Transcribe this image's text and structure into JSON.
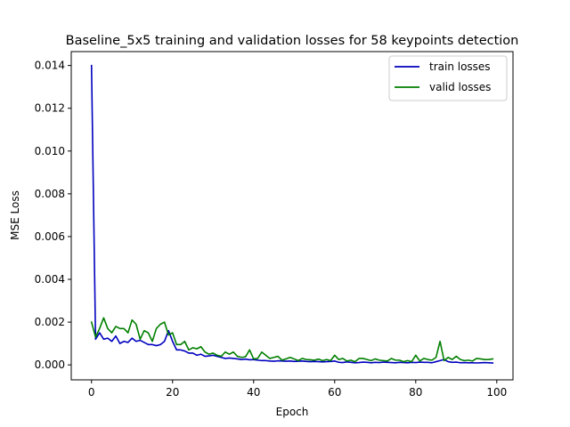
{
  "chart_data": {
    "type": "line",
    "title": "Baseline_5x5 training and validation losses for 58 keypoints detection",
    "xlabel": "Epoch",
    "ylabel": "MSE Loss",
    "xlim": [
      -5,
      104
    ],
    "ylim": [
      -0.0007,
      0.01465
    ],
    "xticks": [
      0,
      20,
      40,
      60,
      80,
      100
    ],
    "xtick_labels": [
      "0",
      "20",
      "40",
      "60",
      "80",
      "100"
    ],
    "yticks": [
      0,
      0.002,
      0.004,
      0.006,
      0.008,
      0.01,
      0.012,
      0.014
    ],
    "ytick_labels": [
      "0.000",
      "0.002",
      "0.004",
      "0.006",
      "0.008",
      "0.010",
      "0.012",
      "0.014"
    ],
    "grid": false,
    "legend_position": "top-right",
    "x": [
      0,
      1,
      2,
      3,
      4,
      5,
      6,
      7,
      8,
      9,
      10,
      11,
      12,
      13,
      14,
      15,
      16,
      17,
      18,
      19,
      20,
      21,
      22,
      23,
      24,
      25,
      26,
      27,
      28,
      29,
      30,
      31,
      32,
      33,
      34,
      35,
      36,
      37,
      38,
      39,
      40,
      41,
      42,
      43,
      44,
      45,
      46,
      47,
      48,
      49,
      50,
      51,
      52,
      53,
      54,
      55,
      56,
      57,
      58,
      59,
      60,
      61,
      62,
      63,
      64,
      65,
      66,
      67,
      68,
      69,
      70,
      71,
      72,
      73,
      74,
      75,
      76,
      77,
      78,
      79,
      80,
      81,
      82,
      83,
      84,
      85,
      86,
      87,
      88,
      89,
      90,
      91,
      92,
      93,
      94,
      95,
      96,
      97,
      98,
      99
    ],
    "series": [
      {
        "name": "train losses",
        "color": "#0000bf",
        "values": [
          0.014,
          0.0012,
          0.0015,
          0.0012,
          0.00125,
          0.0011,
          0.00135,
          0.001,
          0.0011,
          0.00105,
          0.00125,
          0.0011,
          0.00115,
          0.00105,
          0.00095,
          0.00095,
          0.0009,
          0.00095,
          0.0011,
          0.0016,
          0.0011,
          0.0007,
          0.0007,
          0.00065,
          0.00055,
          0.00055,
          0.00045,
          0.0005,
          0.0004,
          0.00042,
          0.00045,
          0.0004,
          0.00035,
          0.0003,
          0.00032,
          0.0003,
          0.00028,
          0.00025,
          0.00027,
          0.00024,
          0.00025,
          0.00022,
          0.0002,
          0.0002,
          0.00018,
          0.00017,
          0.00019,
          0.00018,
          0.00017,
          0.00018,
          0.00016,
          0.00017,
          0.00018,
          0.00016,
          0.00015,
          0.00016,
          0.00015,
          0.00014,
          0.00015,
          0.00016,
          0.00018,
          0.00012,
          0.00011,
          0.00014,
          0.00012,
          0.0001,
          0.00011,
          0.00013,
          0.00012,
          0.0001,
          0.00012,
          0.00011,
          0.00013,
          0.00012,
          0.00011,
          0.0001,
          0.00012,
          0.00011,
          0.0001,
          0.00012,
          0.00011,
          0.00013,
          0.00012,
          0.00012,
          0.0001,
          0.00015,
          0.0002,
          0.00025,
          0.00015,
          0.00012,
          0.00013,
          0.0001,
          0.00011,
          0.0001,
          0.0001,
          9e-05,
          0.0001,
          0.00011,
          0.0001,
          9e-05
        ]
      },
      {
        "name": "valid losses",
        "color": "#007f00",
        "values": [
          0.002,
          0.0013,
          0.0017,
          0.0022,
          0.0017,
          0.0015,
          0.0018,
          0.0017,
          0.0017,
          0.0015,
          0.0021,
          0.0019,
          0.0012,
          0.0016,
          0.0015,
          0.0011,
          0.0017,
          0.0019,
          0.002,
          0.0014,
          0.0015,
          0.00095,
          0.00095,
          0.0011,
          0.0007,
          0.0008,
          0.00075,
          0.00085,
          0.0006,
          0.0005,
          0.00055,
          0.00045,
          0.0004,
          0.0006,
          0.0005,
          0.0006,
          0.0004,
          0.00035,
          0.00038,
          0.0007,
          0.00028,
          0.0003,
          0.0006,
          0.00045,
          0.0003,
          0.00035,
          0.0004,
          0.00022,
          0.00028,
          0.00035,
          0.00028,
          0.0002,
          0.0003,
          0.00025,
          0.00024,
          0.00022,
          0.00027,
          0.0002,
          0.00025,
          0.0002,
          0.00045,
          0.00025,
          0.0003,
          0.00018,
          0.00022,
          0.00015,
          0.0003,
          0.0003,
          0.00025,
          0.0002,
          0.00028,
          0.00022,
          0.0002,
          0.00018,
          0.0003,
          0.00022,
          0.00022,
          0.00015,
          0.0002,
          0.00015,
          0.00045,
          0.00018,
          0.0003,
          0.00025,
          0.00022,
          0.00035,
          0.0011,
          0.0002,
          0.00035,
          0.00025,
          0.0004,
          0.00025,
          0.0002,
          0.00022,
          0.00018,
          0.0003,
          0.00028,
          0.00025,
          0.00025,
          0.00028
        ]
      }
    ]
  }
}
